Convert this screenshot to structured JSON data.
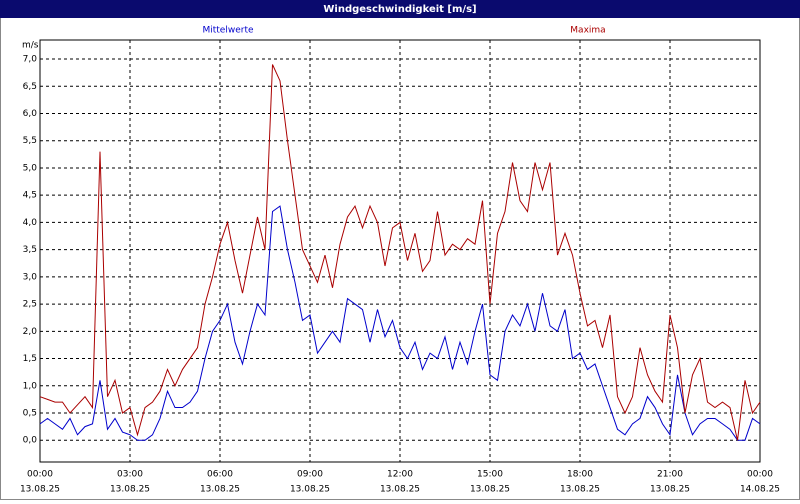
{
  "chart_data": {
    "type": "line",
    "title": "Windgeschwindigkeit [m/s]",
    "y_label": "m/s",
    "x": [
      0,
      0.25,
      0.5,
      0.75,
      1,
      1.25,
      1.5,
      1.75,
      2,
      2.25,
      2.5,
      2.75,
      3,
      3.25,
      3.5,
      3.75,
      4,
      4.25,
      4.5,
      4.75,
      5,
      5.25,
      5.5,
      5.75,
      6,
      6.25,
      6.5,
      6.75,
      7,
      7.25,
      7.5,
      7.75,
      8,
      8.25,
      8.5,
      8.75,
      9,
      9.25,
      9.5,
      9.75,
      10,
      10.25,
      10.5,
      10.75,
      11,
      11.25,
      11.5,
      11.75,
      12,
      12.25,
      12.5,
      12.75,
      13,
      13.25,
      13.5,
      13.75,
      14,
      14.25,
      14.5,
      14.75,
      15,
      15.25,
      15.5,
      15.75,
      16,
      16.25,
      16.5,
      16.75,
      17,
      17.25,
      17.5,
      17.75,
      18,
      18.25,
      18.5,
      18.75,
      19,
      19.25,
      19.5,
      19.75,
      20,
      20.25,
      20.5,
      20.75,
      21,
      21.25,
      21.5,
      21.75,
      22,
      22.25,
      22.5,
      22.75,
      23,
      23.25,
      23.5,
      23.75,
      24
    ],
    "series": [
      {
        "name": "Mittelwerte",
        "color": "#0000cc",
        "values": [
          0.3,
          0.4,
          0.3,
          0.2,
          0.4,
          0.1,
          0.25,
          0.3,
          1.1,
          0.2,
          0.4,
          0.15,
          0.1,
          0.0,
          0.0,
          0.1,
          0.4,
          0.9,
          0.6,
          0.6,
          0.7,
          0.9,
          1.5,
          2.0,
          2.2,
          2.5,
          1.8,
          1.4,
          2.0,
          2.5,
          2.3,
          4.2,
          4.3,
          3.5,
          2.9,
          2.2,
          2.3,
          1.6,
          1.8,
          2.0,
          1.8,
          2.6,
          2.5,
          2.4,
          1.8,
          2.4,
          1.9,
          2.2,
          1.7,
          1.5,
          1.8,
          1.3,
          1.6,
          1.5,
          1.9,
          1.3,
          1.8,
          1.4,
          2.0,
          2.5,
          1.2,
          1.1,
          2.0,
          2.3,
          2.1,
          2.5,
          2.0,
          2.7,
          2.1,
          2.0,
          2.4,
          1.5,
          1.6,
          1.3,
          1.4,
          1.0,
          0.6,
          0.2,
          0.1,
          0.3,
          0.4,
          0.8,
          0.6,
          0.3,
          0.1,
          1.2,
          0.5,
          0.1,
          0.3,
          0.4,
          0.4,
          0.3,
          0.2,
          0.0,
          0.0,
          0.4,
          0.3
        ]
      },
      {
        "name": "Maxima",
        "color": "#aa0000",
        "values": [
          0.8,
          0.75,
          0.7,
          0.7,
          0.5,
          0.65,
          0.8,
          0.6,
          5.3,
          0.8,
          1.1,
          0.5,
          0.6,
          0.1,
          0.6,
          0.7,
          0.9,
          1.3,
          1.0,
          1.3,
          1.5,
          1.7,
          2.5,
          3.0,
          3.6,
          4.0,
          3.3,
          2.7,
          3.4,
          4.1,
          3.5,
          6.9,
          6.6,
          5.5,
          4.5,
          3.5,
          3.2,
          2.9,
          3.4,
          2.8,
          3.6,
          4.1,
          4.3,
          3.9,
          4.3,
          4.0,
          3.2,
          3.9,
          4.0,
          3.3,
          3.8,
          3.1,
          3.3,
          4.2,
          3.4,
          3.6,
          3.5,
          3.7,
          3.6,
          4.4,
          2.5,
          3.8,
          4.2,
          5.1,
          4.4,
          4.2,
          5.1,
          4.6,
          5.1,
          3.4,
          3.8,
          3.4,
          2.7,
          2.1,
          2.2,
          1.7,
          2.3,
          0.8,
          0.5,
          0.8,
          1.7,
          1.2,
          0.9,
          0.7,
          2.3,
          1.7,
          0.5,
          1.2,
          1.5,
          0.7,
          0.6,
          0.7,
          0.6,
          0.0,
          1.1,
          0.5,
          0.7
        ]
      }
    ],
    "xlim": [
      0,
      24
    ],
    "xticks": [
      {
        "value": 0,
        "label": "00:00"
      },
      {
        "value": 3,
        "label": "03:00"
      },
      {
        "value": 6,
        "label": "06:00"
      },
      {
        "value": 9,
        "label": "09:00"
      },
      {
        "value": 12,
        "label": "12:00"
      },
      {
        "value": 15,
        "label": "15:00"
      },
      {
        "value": 18,
        "label": "18:00"
      },
      {
        "value": 21,
        "label": "21:00"
      },
      {
        "value": 24,
        "label": "00:00"
      }
    ],
    "xtick_dates": [
      "13.08.25",
      "13.08.25",
      "13.08.25",
      "13.08.25",
      "13.08.25",
      "13.08.25",
      "13.08.25",
      "13.08.25",
      "14.08.25"
    ],
    "ylim": [
      -0.4,
      7.35
    ],
    "yticks": [
      {
        "value": 0,
        "label": "0,0"
      },
      {
        "value": 0.5,
        "label": "0,5"
      },
      {
        "value": 1,
        "label": "1,0"
      },
      {
        "value": 1.5,
        "label": "1,5"
      },
      {
        "value": 2,
        "label": "2,0"
      },
      {
        "value": 2.5,
        "label": "2,5"
      },
      {
        "value": 3,
        "label": "3,0"
      },
      {
        "value": 3.5,
        "label": "3,5"
      },
      {
        "value": 4,
        "label": "4,0"
      },
      {
        "value": 4.5,
        "label": "4,5"
      },
      {
        "value": 5,
        "label": "5,0"
      },
      {
        "value": 5.5,
        "label": "5,5"
      },
      {
        "value": 6,
        "label": "6,0"
      },
      {
        "value": 6.5,
        "label": "6,5"
      },
      {
        "value": 7,
        "label": "7,0"
      }
    ],
    "grid": true
  }
}
